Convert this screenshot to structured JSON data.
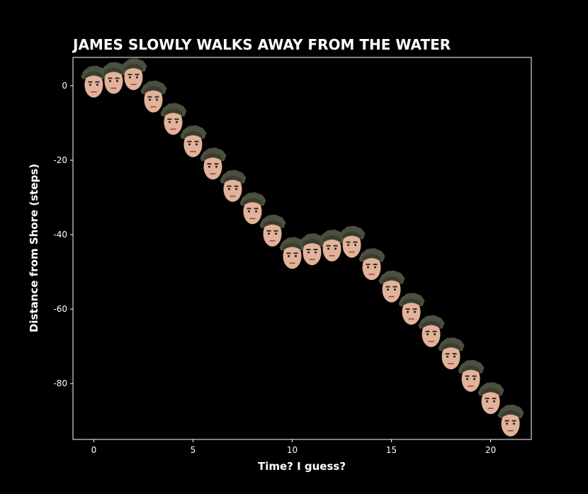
{
  "chart_data": {
    "type": "scatter",
    "title": "JAMES SLOWLY WALKS AWAY FROM THE WATER",
    "xlabel": "Time? I guess?",
    "ylabel": "Distance from Shore (steps)",
    "x": [
      0,
      1,
      2,
      3,
      4,
      5,
      6,
      7,
      8,
      9,
      10,
      11,
      12,
      13,
      14,
      15,
      16,
      17,
      18,
      19,
      20,
      21
    ],
    "values": [
      1,
      2,
      3,
      -3,
      -9,
      -15,
      -21,
      -27,
      -33,
      -39,
      -45,
      -44,
      -43,
      -42,
      -48,
      -54,
      -60,
      -66,
      -72,
      -78,
      -84,
      -90
    ],
    "xlim": [
      -1.05,
      22.05
    ],
    "ylim": [
      -95,
      7.6
    ],
    "xticks": [
      0,
      5,
      10,
      15,
      20
    ],
    "yticks": [
      -80,
      -60,
      -40,
      -20,
      0
    ]
  }
}
